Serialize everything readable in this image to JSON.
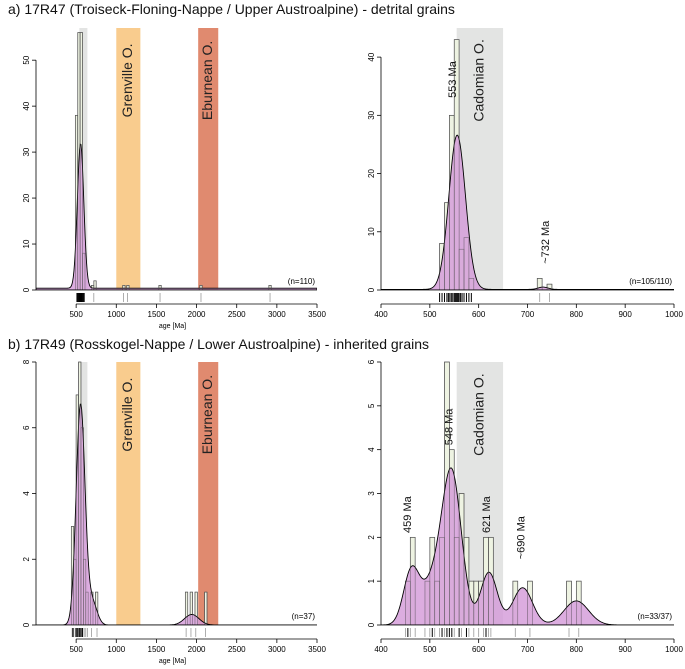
{
  "figure": {
    "colors": {
      "kde_fill": "#d49bd9",
      "kde_line": "#000000",
      "bar_fill": "#eef3e2",
      "bar_stroke": "#555555",
      "grenville": "#f9cc8e",
      "eburnean": "#e08a6f",
      "cadomian": "#e3e4e3"
    }
  },
  "chart_data": [
    {
      "panel_letter": "a)",
      "title": "17R47 (Troiseck-Floning-Nappe / Upper Austroalpine) - detrital grains",
      "type": "bar",
      "xlabel": "age [Ma]",
      "ylabel": "",
      "xlim": [
        0,
        3500
      ],
      "ylim": [
        0,
        57
      ],
      "xticks": [
        500,
        1000,
        1500,
        2000,
        2500,
        3000,
        3500
      ],
      "yticks": [
        0,
        10,
        20,
        30,
        40,
        50
      ],
      "n_label": "(n=110)",
      "bands": [
        {
          "label": "",
          "range": [
            540,
            640
          ],
          "color": "cadomian"
        },
        {
          "label": "Grenville O.",
          "range": [
            1000,
            1300
          ],
          "color": "grenville"
        },
        {
          "label": "Eburnean O.",
          "range": [
            2020,
            2270
          ],
          "color": "eburnean"
        }
      ],
      "bins": [
        {
          "x0": 490,
          "x1": 520,
          "y": 38
        },
        {
          "x0": 520,
          "x1": 550,
          "y": 56
        },
        {
          "x0": 550,
          "x1": 580,
          "y": 56
        },
        {
          "x0": 580,
          "x1": 610,
          "y": 8
        },
        {
          "x0": 690,
          "x1": 720,
          "y": 1
        },
        {
          "x0": 720,
          "x1": 750,
          "y": 2
        },
        {
          "x0": 1080,
          "x1": 1110,
          "y": 1
        },
        {
          "x0": 1130,
          "x1": 1160,
          "y": 1
        },
        {
          "x0": 1530,
          "x1": 1560,
          "y": 1
        },
        {
          "x0": 2040,
          "x1": 2070,
          "y": 1
        },
        {
          "x0": 2900,
          "x1": 2930,
          "y": 1
        }
      ],
      "kde": {
        "peaks": [
          {
            "mu": 555,
            "sigma": 40,
            "height": 31.5
          }
        ],
        "baseline": 0.4
      },
      "rug_dark": [
        510,
        520,
        530,
        535,
        540,
        545,
        550,
        555,
        560,
        565,
        570,
        580,
        590,
        600
      ],
      "rug_grey": [
        720,
        1090,
        1140,
        1545,
        2055,
        2915
      ],
      "annotations": []
    },
    {
      "panel_letter": "",
      "title": "",
      "type": "bar",
      "xlabel": "",
      "ylabel": "",
      "xlim": [
        400,
        1000
      ],
      "ylim": [
        0,
        45
      ],
      "xticks": [
        400,
        500,
        600,
        700,
        800,
        900,
        1000
      ],
      "yticks": [
        0,
        10,
        20,
        30,
        40
      ],
      "n_label": "(n=105/110)",
      "bands": [
        {
          "label": "Cadomian O.",
          "range": [
            555,
            650
          ],
          "color": "cadomian"
        }
      ],
      "bins": [
        {
          "x0": 520,
          "x1": 530,
          "y": 8
        },
        {
          "x0": 530,
          "x1": 540,
          "y": 15
        },
        {
          "x0": 540,
          "x1": 550,
          "y": 30
        },
        {
          "x0": 550,
          "x1": 560,
          "y": 43
        },
        {
          "x0": 560,
          "x1": 570,
          "y": 7
        },
        {
          "x0": 570,
          "x1": 580,
          "y": 9
        },
        {
          "x0": 580,
          "x1": 590,
          "y": 2
        },
        {
          "x0": 720,
          "x1": 730,
          "y": 2
        },
        {
          "x0": 740,
          "x1": 750,
          "y": 1
        }
      ],
      "kde": {
        "peaks": [
          {
            "mu": 556,
            "sigma": 17,
            "height": 26.5
          },
          {
            "mu": 732,
            "sigma": 10,
            "height": 0.4
          }
        ],
        "baseline": 0.1
      },
      "rug_dark": [
        520,
        525,
        530,
        535,
        538,
        541,
        544,
        547,
        550,
        552,
        554,
        556,
        558,
        560,
        563,
        566,
        570,
        575,
        580,
        585
      ],
      "rug_grey": [
        725,
        745
      ],
      "annotations": [
        {
          "text": "553 Ma",
          "x": 548,
          "y": 33
        },
        {
          "text": "~732 Ma",
          "x": 738,
          "y": 4.5
        }
      ]
    },
    {
      "panel_letter": "b)",
      "title": "17R49 (Rosskogel-Nappe / Lower Austroalpine) - inherited grains",
      "type": "bar",
      "xlabel": "age [Ma]",
      "ylabel": "",
      "xlim": [
        0,
        3500
      ],
      "ylim": [
        0,
        8
      ],
      "xticks": [
        500,
        1000,
        1500,
        2000,
        2500,
        3000,
        3500
      ],
      "yticks": [
        0,
        2,
        4,
        6,
        8
      ],
      "n_label": "(n=37)",
      "bands": [
        {
          "label": "",
          "range": [
            540,
            640
          ],
          "color": "cadomian"
        },
        {
          "label": "Grenville O.",
          "range": [
            1000,
            1300
          ],
          "color": "grenville"
        },
        {
          "label": "Eburnean O.",
          "range": [
            2020,
            2270
          ],
          "color": "eburnean"
        }
      ],
      "bins": [
        {
          "x0": 440,
          "x1": 470,
          "y": 3
        },
        {
          "x0": 470,
          "x1": 500,
          "y": 2
        },
        {
          "x0": 500,
          "x1": 530,
          "y": 7
        },
        {
          "x0": 530,
          "x1": 560,
          "y": 8
        },
        {
          "x0": 560,
          "x1": 590,
          "y": 6
        },
        {
          "x0": 590,
          "x1": 620,
          "y": 2
        },
        {
          "x0": 620,
          "x1": 650,
          "y": 1
        },
        {
          "x0": 680,
          "x1": 710,
          "y": 1
        },
        {
          "x0": 740,
          "x1": 770,
          "y": 1
        },
        {
          "x0": 1860,
          "x1": 1890,
          "y": 1
        },
        {
          "x0": 1920,
          "x1": 1950,
          "y": 1
        },
        {
          "x0": 1980,
          "x1": 2010,
          "y": 1
        },
        {
          "x0": 2100,
          "x1": 2130,
          "y": 1
        }
      ],
      "kde": {
        "peaks": [
          {
            "mu": 555,
            "sigma": 55,
            "height": 6.7
          },
          {
            "mu": 700,
            "sigma": 60,
            "height": 0.7
          },
          {
            "mu": 1940,
            "sigma": 90,
            "height": 0.32
          }
        ],
        "baseline": 0.0
      },
      "rug_dark": [
        460,
        500,
        520,
        540,
        560,
        580
      ],
      "rug_grey": [
        450,
        470,
        490,
        510,
        530,
        550,
        570,
        600,
        620,
        640,
        690,
        760,
        1870,
        1930,
        1990,
        2110
      ],
      "annotations": []
    },
    {
      "panel_letter": "",
      "title": "",
      "type": "bar",
      "xlabel": "",
      "ylabel": "",
      "xlim": [
        400,
        1000
      ],
      "ylim": [
        0,
        6
      ],
      "xticks": [
        400,
        500,
        600,
        700,
        800,
        900,
        1000
      ],
      "yticks": [
        0,
        1,
        2,
        3,
        4,
        5,
        6
      ],
      "n_label": "(n=33/37)",
      "bands": [
        {
          "label": "Cadomian O.",
          "range": [
            555,
            650
          ],
          "color": "cadomian"
        }
      ],
      "bins": [
        {
          "x0": 450,
          "x1": 460,
          "y": 1
        },
        {
          "x0": 460,
          "x1": 470,
          "y": 2
        },
        {
          "x0": 490,
          "x1": 500,
          "y": 1
        },
        {
          "x0": 500,
          "x1": 510,
          "y": 2
        },
        {
          "x0": 510,
          "x1": 520,
          "y": 1
        },
        {
          "x0": 520,
          "x1": 530,
          "y": 2
        },
        {
          "x0": 530,
          "x1": 540,
          "y": 6
        },
        {
          "x0": 540,
          "x1": 550,
          "y": 4
        },
        {
          "x0": 550,
          "x1": 560,
          "y": 2
        },
        {
          "x0": 560,
          "x1": 570,
          "y": 3
        },
        {
          "x0": 570,
          "x1": 580,
          "y": 2
        },
        {
          "x0": 580,
          "x1": 590,
          "y": 1
        },
        {
          "x0": 590,
          "x1": 600,
          "y": 1
        },
        {
          "x0": 600,
          "x1": 610,
          "y": 1
        },
        {
          "x0": 610,
          "x1": 620,
          "y": 2
        },
        {
          "x0": 620,
          "x1": 630,
          "y": 2
        },
        {
          "x0": 670,
          "x1": 680,
          "y": 1
        },
        {
          "x0": 700,
          "x1": 710,
          "y": 1
        },
        {
          "x0": 780,
          "x1": 790,
          "y": 1
        },
        {
          "x0": 800,
          "x1": 810,
          "y": 1
        }
      ],
      "kde": {
        "peaks": [
          {
            "mu": 462,
            "sigma": 16,
            "height": 1.2
          },
          {
            "mu": 545,
            "sigma": 20,
            "height": 3.4
          },
          {
            "mu": 505,
            "sigma": 22,
            "height": 0.9
          },
          {
            "mu": 621,
            "sigma": 17,
            "height": 1.2
          },
          {
            "mu": 690,
            "sigma": 20,
            "height": 0.85
          },
          {
            "mu": 800,
            "sigma": 25,
            "height": 0.55
          }
        ],
        "baseline": 0.0
      },
      "rug_dark": [
        455,
        505,
        525,
        535,
        540,
        545,
        560,
        575,
        615
      ],
      "rug_grey": [
        450,
        460,
        470,
        490,
        500,
        510,
        520,
        530,
        550,
        565,
        580,
        590,
        600,
        610,
        620,
        625,
        675,
        705,
        785,
        805
      ],
      "annotations": [
        {
          "text": "459 Ma",
          "x": 456,
          "y": 2.1
        },
        {
          "text": "548 Ma",
          "x": 540,
          "y": 4.1
        },
        {
          "text": "621 Ma",
          "x": 617,
          "y": 2.1
        },
        {
          "text": "~690 Ma",
          "x": 688,
          "y": 1.5
        }
      ]
    }
  ]
}
